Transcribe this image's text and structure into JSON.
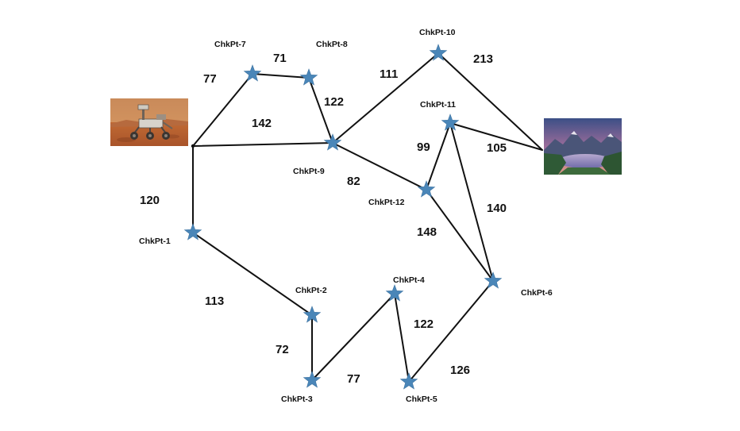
{
  "colors": {
    "edge": "#111111",
    "star": "#4a86b8",
    "text": "#111111",
    "background": "#ffffff"
  },
  "images": {
    "start": {
      "icon": "mars-rover-photo"
    },
    "goal": {
      "icon": "mountain-lake-landscape-photo"
    }
  },
  "nodes": [
    {
      "id": "start",
      "kind": "image"
    },
    {
      "id": "goal",
      "kind": "image"
    },
    {
      "id": "cp1",
      "label": "ChkPt-1"
    },
    {
      "id": "cp2",
      "label": "ChkPt-2"
    },
    {
      "id": "cp3",
      "label": "ChkPt-3"
    },
    {
      "id": "cp4",
      "label": "ChkPt-4"
    },
    {
      "id": "cp5",
      "label": "ChkPt-5"
    },
    {
      "id": "cp6",
      "label": "ChkPt-6"
    },
    {
      "id": "cp7",
      "label": "ChkPt-7"
    },
    {
      "id": "cp8",
      "label": "ChkPt-8"
    },
    {
      "id": "cp9",
      "label": "ChkPt-9"
    },
    {
      "id": "cp10",
      "label": "ChkPt-10"
    },
    {
      "id": "cp11",
      "label": "ChkPt-11"
    },
    {
      "id": "cp12",
      "label": "ChkPt-12"
    }
  ],
  "edges": [
    {
      "from": "start",
      "to": "cp7",
      "weight": "77"
    },
    {
      "from": "cp7",
      "to": "cp8",
      "weight": "71"
    },
    {
      "from": "cp8",
      "to": "cp9",
      "weight": "122"
    },
    {
      "from": "start",
      "to": "cp9",
      "weight": "142"
    },
    {
      "from": "cp9",
      "to": "cp10",
      "weight": "111"
    },
    {
      "from": "cp10",
      "to": "goal",
      "weight": "213"
    },
    {
      "from": "cp11",
      "to": "goal",
      "weight": "105"
    },
    {
      "from": "cp9",
      "to": "cp12",
      "weight": "82"
    },
    {
      "from": "cp12",
      "to": "cp11",
      "weight": "99"
    },
    {
      "from": "cp11",
      "to": "cp6",
      "weight": "140"
    },
    {
      "from": "cp12",
      "to": "cp6",
      "weight": "148"
    },
    {
      "from": "start",
      "to": "cp1",
      "weight": "120"
    },
    {
      "from": "cp1",
      "to": "cp2",
      "weight": "113"
    },
    {
      "from": "cp2",
      "to": "cp3",
      "weight": "72"
    },
    {
      "from": "cp3",
      "to": "cp4",
      "weight": "77"
    },
    {
      "from": "cp4",
      "to": "cp5",
      "weight": "122"
    },
    {
      "from": "cp5",
      "to": "cp6",
      "weight": "126"
    }
  ]
}
